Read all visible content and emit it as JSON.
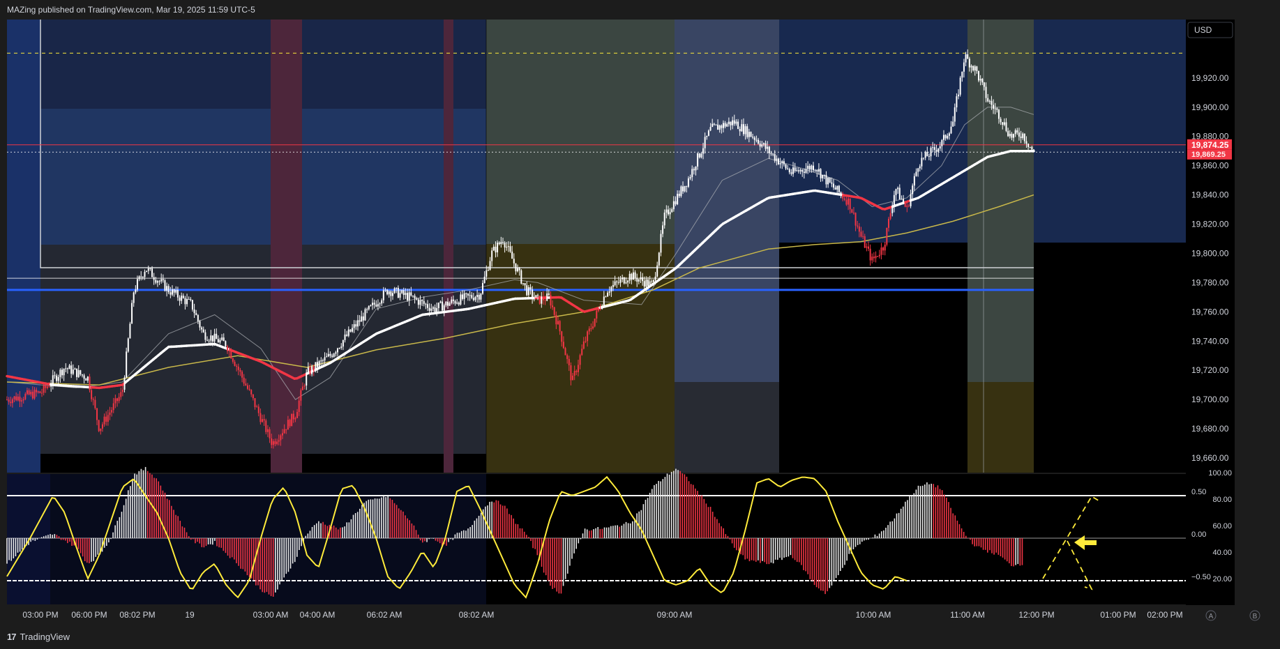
{
  "header": {
    "published_text": "MAZing published on TradingView.com, Mar 19, 2025 11:59 UTC-5"
  },
  "footer": {
    "logo_mark": "17",
    "logo_text": "TradingView"
  },
  "price_axis": {
    "currency": "USD",
    "price_badge_top": "19,874.25",
    "price_badge_bottom": "19,869.25"
  },
  "oscillator_axis": {
    "left_ticks": [
      {
        "value": 0.5,
        "label": "0.50"
      },
      {
        "value": 0.0,
        "label": "0.00"
      },
      {
        "value": -0.5,
        "label": "−0.50"
      }
    ],
    "right_ticks": [
      {
        "value": 100,
        "label": "100.00"
      },
      {
        "value": 80,
        "label": "80.00"
      },
      {
        "value": 60,
        "label": "60.00"
      },
      {
        "value": 40,
        "label": "40.00"
      },
      {
        "value": 20,
        "label": "20.00"
      }
    ]
  },
  "bottom_buttons": [
    "A",
    "B"
  ],
  "colors": {
    "bull_candle": "#ffffff",
    "bear_candle": "#f23645",
    "ema_white": "#ffffff",
    "ema_red": "#f23645",
    "ma_yellow": "#c9b84a",
    "level_blue": "#2962ff",
    "level_red": "#f23645",
    "oscillator_line": "#ffeb3b",
    "dashed_target": "#ffeb3b"
  },
  "chart_data": {
    "type": "candlestick",
    "title": "",
    "ylim": [
      19650,
      19960
    ],
    "y_ticks": [
      19660,
      19680,
      19700,
      19720,
      19740,
      19760,
      19780,
      19800,
      19820,
      19840,
      19860,
      19880,
      19900,
      19920
    ],
    "y_tick_labels": [
      "19,660.00",
      "19,680.00",
      "19,700.00",
      "19,720.00",
      "19,740.00",
      "19,760.00",
      "19,780.00",
      "19,800.00",
      "19,820.00",
      "19,840.00",
      "19,860.00",
      "19,880.00",
      "19,900.00",
      "19,920.00"
    ],
    "x_ticks": [
      "03:00 PM",
      "06:00 PM",
      "08:02 PM",
      "19",
      "03:00 AM",
      "04:00 AM",
      "06:02 AM",
      "08:02 AM",
      "09:00 AM",
      "10:00 AM",
      "11:00 AM",
      "12:00 PM",
      "01:00 PM",
      "02:00 PM"
    ],
    "price_path": [
      [
        0,
        19700
      ],
      [
        3,
        19705
      ],
      [
        5,
        19722
      ],
      [
        7,
        19715
      ],
      [
        8,
        19680
      ],
      [
        10,
        19705
      ],
      [
        11,
        19775
      ],
      [
        12,
        19790
      ],
      [
        14,
        19775
      ],
      [
        16,
        19765
      ],
      [
        17,
        19745
      ],
      [
        19,
        19738
      ],
      [
        21,
        19705
      ],
      [
        23,
        19670
      ],
      [
        25,
        19690
      ],
      [
        26,
        19718
      ],
      [
        28,
        19730
      ],
      [
        31,
        19758
      ],
      [
        33,
        19775
      ],
      [
        35,
        19770
      ],
      [
        37,
        19762
      ],
      [
        39,
        19768
      ],
      [
        41,
        19772
      ],
      [
        42,
        19800
      ],
      [
        43,
        19810
      ],
      [
        45,
        19775
      ],
      [
        46,
        19768
      ],
      [
        47,
        19770
      ],
      [
        48,
        19745
      ],
      [
        49,
        19712
      ],
      [
        50,
        19738
      ],
      [
        52,
        19775
      ],
      [
        54,
        19785
      ],
      [
        56,
        19778
      ],
      [
        57,
        19825
      ],
      [
        59,
        19850
      ],
      [
        61,
        19885
      ],
      [
        63,
        19890
      ],
      [
        65,
        19878
      ],
      [
        66,
        19870
      ],
      [
        68,
        19855
      ],
      [
        70,
        19860
      ],
      [
        71,
        19850
      ],
      [
        73,
        19835
      ],
      [
        74,
        19812
      ],
      [
        75,
        19795
      ],
      [
        76,
        19805
      ],
      [
        77,
        19845
      ],
      [
        78,
        19830
      ],
      [
        79,
        19862
      ],
      [
        81,
        19875
      ],
      [
        82,
        19890
      ],
      [
        83,
        19935
      ],
      [
        84,
        19925
      ],
      [
        85,
        19905
      ],
      [
        86,
        19895
      ],
      [
        87,
        19880
      ],
      [
        88,
        19882
      ],
      [
        89,
        19869
      ]
    ],
    "series": [
      {
        "name": "",
        "kind": "ema-fast",
        "points": [
          [
            0,
            19716
          ],
          [
            4,
            19710
          ],
          [
            8,
            19708
          ],
          [
            10,
            19710
          ],
          [
            14,
            19736
          ],
          [
            18,
            19738
          ],
          [
            22,
            19726
          ],
          [
            25,
            19714
          ],
          [
            28,
            19725
          ],
          [
            32,
            19745
          ],
          [
            36,
            19758
          ],
          [
            40,
            19762
          ],
          [
            44,
            19769
          ],
          [
            48,
            19770
          ],
          [
            50,
            19760
          ],
          [
            54,
            19768
          ],
          [
            58,
            19790
          ],
          [
            62,
            19820
          ],
          [
            66,
            19838
          ],
          [
            70,
            19843
          ],
          [
            74,
            19838
          ],
          [
            76,
            19830
          ],
          [
            79,
            19838
          ],
          [
            82,
            19852
          ],
          [
            85,
            19866
          ],
          [
            87,
            19870
          ],
          [
            89,
            19870
          ]
        ]
      },
      {
        "name": "",
        "kind": "ema-slow",
        "points": [
          [
            0,
            19712
          ],
          [
            8,
            19710
          ],
          [
            14,
            19722
          ],
          [
            20,
            19730
          ],
          [
            26,
            19722
          ],
          [
            32,
            19734
          ],
          [
            38,
            19742
          ],
          [
            44,
            19752
          ],
          [
            50,
            19760
          ],
          [
            56,
            19775
          ],
          [
            60,
            19790
          ],
          [
            66,
            19803
          ],
          [
            70,
            19806
          ],
          [
            74,
            19808
          ],
          [
            78,
            19814
          ],
          [
            82,
            19822
          ],
          [
            86,
            19832
          ],
          [
            89,
            19840
          ]
        ]
      },
      {
        "name": "",
        "kind": "sma-thin",
        "points": [
          [
            0,
            19712
          ],
          [
            6,
            19708
          ],
          [
            10,
            19712
          ],
          [
            14,
            19745
          ],
          [
            18,
            19758
          ],
          [
            22,
            19735
          ],
          [
            25,
            19700
          ],
          [
            28,
            19715
          ],
          [
            32,
            19762
          ],
          [
            36,
            19770
          ],
          [
            40,
            19775
          ],
          [
            44,
            19782
          ],
          [
            46,
            19780
          ],
          [
            50,
            19768
          ],
          [
            55,
            19765
          ],
          [
            58,
            19800
          ],
          [
            62,
            19850
          ],
          [
            66,
            19865
          ],
          [
            69,
            19858
          ],
          [
            72,
            19850
          ],
          [
            75,
            19832
          ],
          [
            78,
            19838
          ],
          [
            81,
            19860
          ],
          [
            83,
            19888
          ],
          [
            85,
            19900
          ],
          [
            87,
            19900
          ],
          [
            89,
            19895
          ]
        ]
      }
    ],
    "levels": [
      {
        "price": 19874.25,
        "style": "solid",
        "color": "level_red"
      },
      {
        "price": 19869.25,
        "style": "dotted",
        "color": "ema_white"
      },
      {
        "price": 19775,
        "style": "solid",
        "color": "level_blue"
      },
      {
        "price": 19783,
        "style": "solid",
        "color": "ema_white"
      },
      {
        "price": 19937,
        "style": "dashed",
        "color": "oscillator_line"
      }
    ],
    "oscillator": {
      "histogram": [
        [
          0,
          -0.3
        ],
        [
          2,
          -0.05
        ],
        [
          4,
          0.05
        ],
        [
          6,
          -0.1
        ],
        [
          7,
          -0.3
        ],
        [
          8,
          -0.2
        ],
        [
          9,
          0.0
        ],
        [
          10,
          0.35
        ],
        [
          11,
          0.75
        ],
        [
          12,
          0.82
        ],
        [
          13,
          0.7
        ],
        [
          14,
          0.45
        ],
        [
          15,
          0.2
        ],
        [
          16,
          -0.02
        ],
        [
          17,
          -0.1
        ],
        [
          18,
          -0.05
        ],
        [
          20,
          -0.3
        ],
        [
          22,
          -0.6
        ],
        [
          23,
          -0.7
        ],
        [
          25,
          -0.25
        ],
        [
          26,
          0.05
        ],
        [
          27,
          0.2
        ],
        [
          29,
          0.1
        ],
        [
          31,
          0.42
        ],
        [
          33,
          0.5
        ],
        [
          34,
          0.35
        ],
        [
          35,
          0.2
        ],
        [
          36,
          -0.05
        ],
        [
          37,
          0.0
        ],
        [
          38,
          -0.1
        ],
        [
          39,
          0.05
        ],
        [
          40,
          0.1
        ],
        [
          41,
          0.3
        ],
        [
          42,
          0.45
        ],
        [
          43,
          0.4
        ],
        [
          44,
          0.2
        ],
        [
          45,
          0.05
        ],
        [
          46,
          -0.2
        ],
        [
          47,
          -0.55
        ],
        [
          48,
          -0.65
        ],
        [
          49,
          -0.25
        ],
        [
          50,
          0.1
        ],
        [
          52,
          0.12
        ],
        [
          54,
          0.18
        ],
        [
          55,
          0.35
        ],
        [
          56,
          0.6
        ],
        [
          57,
          0.72
        ],
        [
          58,
          0.82
        ],
        [
          59,
          0.7
        ],
        [
          61,
          0.35
        ],
        [
          62,
          0.12
        ],
        [
          63,
          -0.1
        ],
        [
          64,
          -0.25
        ],
        [
          66,
          -0.3
        ],
        [
          68,
          -0.2
        ],
        [
          69,
          -0.35
        ],
        [
          70,
          -0.55
        ],
        [
          71,
          -0.65
        ],
        [
          72,
          -0.45
        ],
        [
          73,
          -0.2
        ],
        [
          74,
          -0.05
        ],
        [
          75,
          0.0
        ],
        [
          76,
          0.1
        ],
        [
          77,
          0.25
        ],
        [
          78,
          0.45
        ],
        [
          79,
          0.6
        ],
        [
          80,
          0.65
        ],
        [
          81,
          0.58
        ],
        [
          82,
          0.3
        ],
        [
          83,
          0.05
        ],
        [
          84,
          -0.1
        ],
        [
          86,
          -0.2
        ],
        [
          87,
          -0.32
        ],
        [
          88,
          -0.3
        ]
      ],
      "signal": [
        [
          0,
          -0.45
        ],
        [
          2,
          0.0
        ],
        [
          4,
          0.5
        ],
        [
          5,
          0.3
        ],
        [
          6,
          -0.1
        ],
        [
          7,
          -0.48
        ],
        [
          8,
          -0.2
        ],
        [
          9,
          0.2
        ],
        [
          10,
          0.6
        ],
        [
          11,
          0.7
        ],
        [
          12,
          0.5
        ],
        [
          13,
          0.3
        ],
        [
          14,
          0.0
        ],
        [
          15,
          -0.4
        ],
        [
          16,
          -0.62
        ],
        [
          17,
          -0.4
        ],
        [
          18,
          -0.3
        ],
        [
          19,
          -0.55
        ],
        [
          20,
          -0.7
        ],
        [
          21,
          -0.5
        ],
        [
          22,
          0.0
        ],
        [
          23,
          0.45
        ],
        [
          24,
          0.6
        ],
        [
          25,
          0.3
        ],
        [
          26,
          -0.2
        ],
        [
          27,
          -0.35
        ],
        [
          28,
          0.1
        ],
        [
          29,
          0.58
        ],
        [
          30,
          0.62
        ],
        [
          31,
          0.35
        ],
        [
          32,
          0.0
        ],
        [
          33,
          -0.45
        ],
        [
          34,
          -0.6
        ],
        [
          35,
          -0.4
        ],
        [
          36,
          -0.15
        ],
        [
          37,
          -0.35
        ],
        [
          38,
          0.0
        ],
        [
          39,
          0.55
        ],
        [
          40,
          0.62
        ],
        [
          41,
          0.35
        ],
        [
          42,
          0.05
        ],
        [
          43,
          -0.25
        ],
        [
          44,
          -0.55
        ],
        [
          45,
          -0.7
        ],
        [
          46,
          -0.3
        ],
        [
          47,
          0.2
        ],
        [
          48,
          0.55
        ],
        [
          49,
          0.5
        ],
        [
          50,
          0.55
        ],
        [
          51,
          0.6
        ],
        [
          52,
          0.72
        ],
        [
          53,
          0.55
        ],
        [
          54,
          0.3
        ],
        [
          55,
          0.1
        ],
        [
          56,
          -0.2
        ],
        [
          57,
          -0.5
        ],
        [
          58,
          -0.55
        ],
        [
          59,
          -0.5
        ],
        [
          60,
          -0.35
        ],
        [
          61,
          -0.55
        ],
        [
          62,
          -0.65
        ],
        [
          63,
          -0.4
        ],
        [
          64,
          0.1
        ],
        [
          65,
          0.65
        ],
        [
          66,
          0.7
        ],
        [
          67,
          0.6
        ],
        [
          68,
          0.68
        ],
        [
          69,
          0.72
        ],
        [
          70,
          0.7
        ],
        [
          71,
          0.55
        ],
        [
          72,
          0.2
        ],
        [
          73,
          -0.1
        ],
        [
          74,
          -0.4
        ],
        [
          75,
          -0.55
        ],
        [
          76,
          -0.6
        ],
        [
          77,
          -0.45
        ],
        [
          78,
          -0.5
        ]
      ]
    }
  }
}
